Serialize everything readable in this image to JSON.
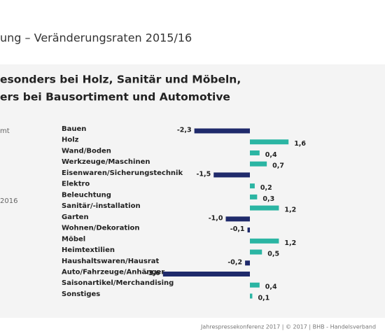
{
  "slide": {
    "title": "ung – Veränderungsraten 2015/16",
    "subtitle": [
      "esonders bei Holz, Sanitär und Möbeln,",
      "ers bei Bausortiment und Automotive"
    ],
    "side_labels": [
      "mt",
      "2016"
    ],
    "footer": "Jahrespressekonferenz 2017 |  © 2017 | BHB - Handelsverband"
  },
  "chart_data": {
    "type": "bar",
    "orientation": "horizontal",
    "categories": [
      "Bauen",
      "Holz",
      "Wand/Boden",
      "Werkzeuge/Maschinen",
      "Eisenwaren/Sicherungstechnik",
      "Elektro",
      "Beleuchtung",
      "Sanitär/-installation",
      "Garten",
      "Wohnen/Dekoration",
      "Möbel",
      "Heimtextilien",
      "Haushaltswaren/Hausrat",
      "Auto/Fahrzeuge/Anhänger",
      "Saisonartikel/Merchandising",
      "Sonstiges"
    ],
    "values": [
      -2.3,
      1.6,
      0.4,
      0.7,
      -1.5,
      0.2,
      0.3,
      1.2,
      -1.0,
      -0.1,
      1.2,
      0.5,
      -0.2,
      -3.6,
      0.4,
      0.1
    ],
    "value_labels": [
      "-2,3",
      "1,6",
      "0,4",
      "0,7",
      "-1,5",
      "0,2",
      "0,3",
      "1,2",
      "-1,0",
      "-0,1",
      "1,2",
      "0,5",
      "-0,2",
      "-3,6",
      "0,4",
      "0,1"
    ],
    "xlim": [
      -4,
      2
    ],
    "negative_color": "#1f2a6b",
    "positive_color": "#2bb5a3"
  }
}
